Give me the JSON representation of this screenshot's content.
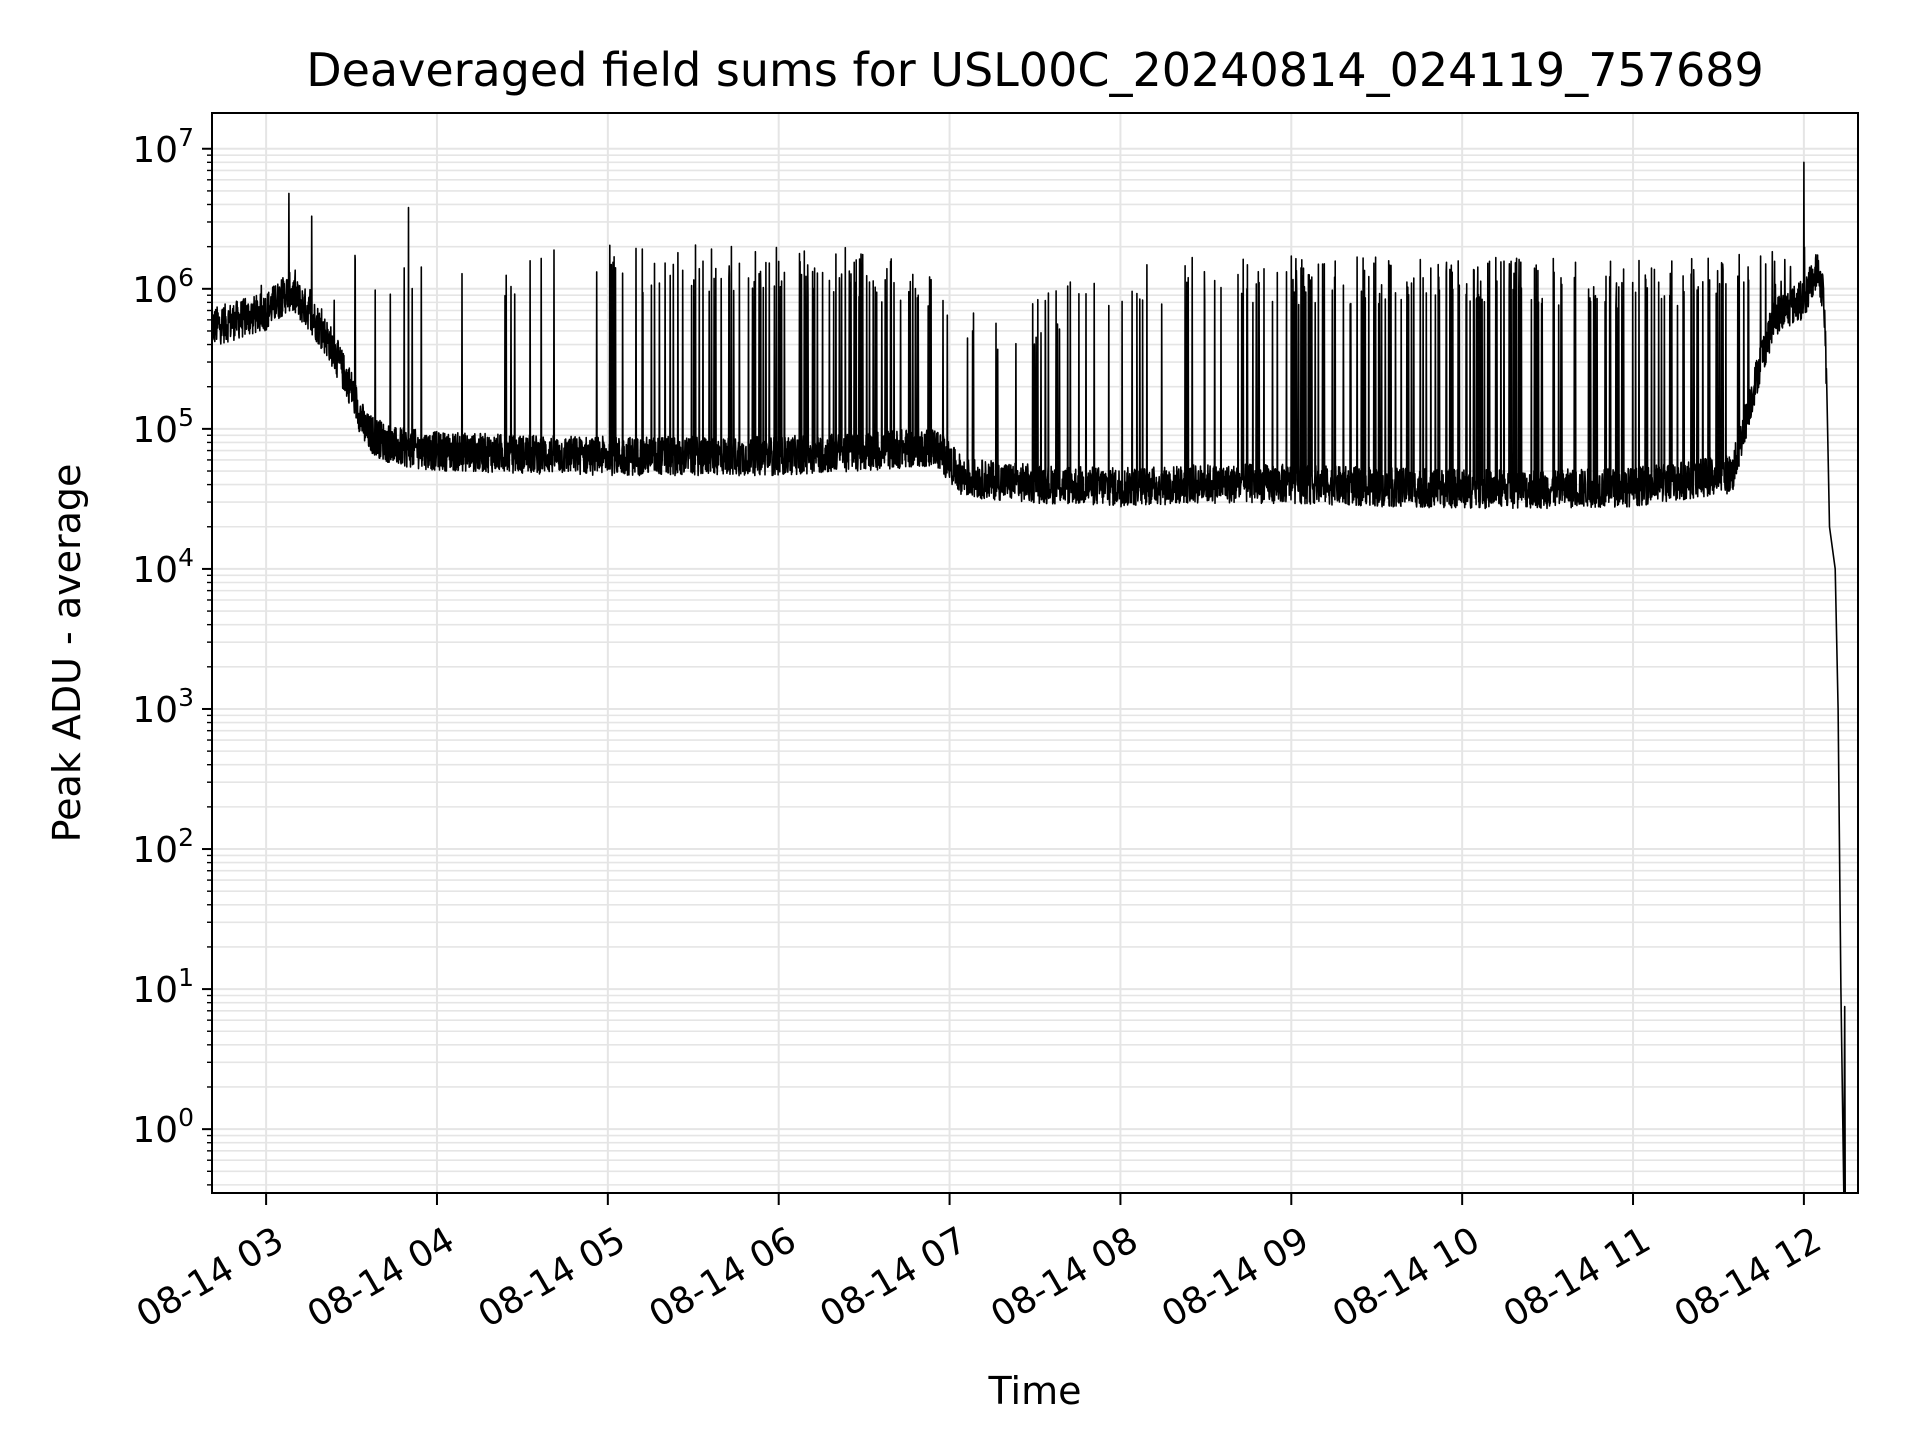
{
  "chart_data": {
    "type": "line",
    "title": "Deaveraged field sums for USL00C_20240814_024119_757689",
    "xlabel": "Time",
    "ylabel": "Peak ADU - average",
    "yscale": "log",
    "ylim": [
      0.35,
      18000000
    ],
    "xlim": [
      "2024-08-14 02:41:00",
      "2024-08-14 12:19:00"
    ],
    "grid": true,
    "legend": "none",
    "line_color": "#000000",
    "grid_color": "#e5e5e5",
    "x_ticks": [
      {
        "t": "2024-08-14 03:00:00",
        "label": "08-14 03"
      },
      {
        "t": "2024-08-14 04:00:00",
        "label": "08-14 04"
      },
      {
        "t": "2024-08-14 05:00:00",
        "label": "08-14 05"
      },
      {
        "t": "2024-08-14 06:00:00",
        "label": "08-14 06"
      },
      {
        "t": "2024-08-14 07:00:00",
        "label": "08-14 07"
      },
      {
        "t": "2024-08-14 08:00:00",
        "label": "08-14 08"
      },
      {
        "t": "2024-08-14 09:00:00",
        "label": "08-14 09"
      },
      {
        "t": "2024-08-14 10:00:00",
        "label": "08-14 10"
      },
      {
        "t": "2024-08-14 11:00:00",
        "label": "08-14 11"
      },
      {
        "t": "2024-08-14 12:00:00",
        "label": "08-14 12"
      }
    ],
    "y_ticks": [
      {
        "value": 1,
        "base": "10",
        "exp": "0"
      },
      {
        "value": 10,
        "base": "10",
        "exp": "1"
      },
      {
        "value": 100,
        "base": "10",
        "exp": "2"
      },
      {
        "value": 1000,
        "base": "10",
        "exp": "3"
      },
      {
        "value": 10000,
        "base": "10",
        "exp": "4"
      },
      {
        "value": 100000,
        "base": "10",
        "exp": "5"
      },
      {
        "value": 1000000,
        "base": "10",
        "exp": "6"
      },
      {
        "value": 10000000,
        "base": "10",
        "exp": "7"
      }
    ],
    "series": [
      {
        "values_are": "baseline envelope (low value of the noisy floor) per time",
        "baseline": [
          [
            "2024-08-14 02:41:00",
            500000
          ],
          [
            "2024-08-14 02:55:00",
            600000
          ],
          [
            "2024-08-14 03:00:00",
            650000
          ],
          [
            "2024-08-14 03:08:00",
            900000
          ],
          [
            "2024-08-14 03:15:00",
            650000
          ],
          [
            "2024-08-14 03:22:00",
            400000
          ],
          [
            "2024-08-14 03:30:00",
            180000
          ],
          [
            "2024-08-14 03:35:00",
            90000
          ],
          [
            "2024-08-14 03:45:00",
            70000
          ],
          [
            "2024-08-14 04:00:00",
            65000
          ],
          [
            "2024-08-14 04:30:00",
            62000
          ],
          [
            "2024-08-14 05:00:00",
            60000
          ],
          [
            "2024-08-14 05:30:00",
            60000
          ],
          [
            "2024-08-14 06:00:00",
            60000
          ],
          [
            "2024-08-14 06:30:00",
            65000
          ],
          [
            "2024-08-14 06:55:00",
            70000
          ],
          [
            "2024-08-14 07:05:00",
            42000
          ],
          [
            "2024-08-14 07:30:00",
            38000
          ],
          [
            "2024-08-14 08:00:00",
            36000
          ],
          [
            "2024-08-14 08:30:00",
            38000
          ],
          [
            "2024-08-14 09:00:00",
            38000
          ],
          [
            "2024-08-14 09:30:00",
            36000
          ],
          [
            "2024-08-14 10:00:00",
            35000
          ],
          [
            "2024-08-14 10:30:00",
            35000
          ],
          [
            "2024-08-14 11:00:00",
            36000
          ],
          [
            "2024-08-14 11:35:00",
            45000
          ],
          [
            "2024-08-14 11:45:00",
            300000
          ],
          [
            "2024-08-14 11:50:00",
            600000
          ],
          [
            "2024-08-14 12:00:00",
            800000
          ],
          [
            "2024-08-14 12:05:00",
            1300000
          ],
          [
            "2024-08-14 12:07:00",
            800000
          ],
          [
            "2024-08-14 12:08:00",
            200000
          ],
          [
            "2024-08-14 12:09:00",
            20000
          ],
          [
            "2024-08-14 12:11:00",
            10000
          ],
          [
            "2024-08-14 12:12:00",
            1000
          ],
          [
            "2024-08-14 12:13:00",
            10
          ],
          [
            "2024-08-14 12:14:00",
            0.35
          ]
        ],
        "spike_level": [
          [
            "2024-08-14 02:41:00",
            800000
          ],
          [
            "2024-08-14 03:00:00",
            1000000
          ],
          [
            "2024-08-14 03:30:00",
            1500000
          ],
          [
            "2024-08-14 04:00:00",
            1400000
          ],
          [
            "2024-08-14 04:40:00",
            1700000
          ],
          [
            "2024-08-14 05:30:00",
            1700000
          ],
          [
            "2024-08-14 06:30:00",
            1600000
          ],
          [
            "2024-08-14 06:55:00",
            1000000
          ],
          [
            "2024-08-14 07:15:00",
            500000
          ],
          [
            "2024-08-14 08:00:00",
            1400000
          ],
          [
            "2024-08-14 09:00:00",
            1400000
          ],
          [
            "2024-08-14 10:00:00",
            1400000
          ],
          [
            "2024-08-14 11:00:00",
            1300000
          ],
          [
            "2024-08-14 11:45:00",
            1500000
          ],
          [
            "2024-08-14 12:00:00",
            1800000
          ]
        ],
        "peaks": [
          [
            "2024-08-14 03:08:00",
            4800000
          ],
          [
            "2024-08-14 03:16:00",
            3300000
          ],
          [
            "2024-08-14 03:50:00",
            3800000
          ],
          [
            "2024-08-14 12:00:00",
            8000000
          ],
          [
            "2024-08-14 12:14:00",
            7.5
          ]
        ]
      }
    ]
  }
}
